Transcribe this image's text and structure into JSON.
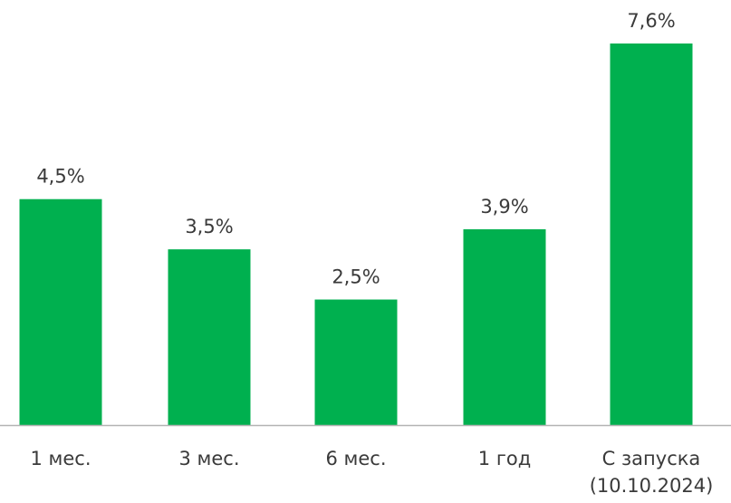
{
  "colors": {
    "bar": "#00b04f",
    "axis": "#b3b3b3",
    "text": "#3a3a3a"
  },
  "chart_data": {
    "type": "bar",
    "categories": [
      [
        "1 мес."
      ],
      [
        "3 мес."
      ],
      [
        "6 мес."
      ],
      [
        "1 год"
      ],
      [
        "С запуска",
        "(10.10.2024)"
      ]
    ],
    "values": [
      4.5,
      3.5,
      2.5,
      3.9,
      7.6
    ],
    "value_labels": [
      "4,5%",
      "3,5%",
      "2,5%",
      "3,9%",
      "7,6%"
    ],
    "ylim": [
      0,
      7.6
    ],
    "grid": false,
    "legend": "none"
  }
}
